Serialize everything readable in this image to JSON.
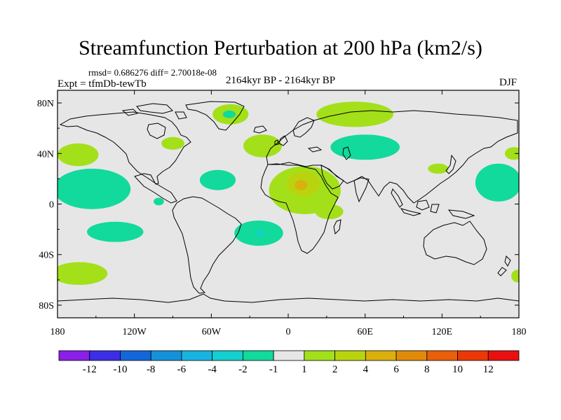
{
  "header": {
    "title": "Streamfunction Perturbation at 200 hPa (km2/s)",
    "stats": "rmsd= 0.686276 diff= 2.70018e-08",
    "period": "2164kyr BP - 2164kyr BP",
    "experiment": "Expt = tfmDb-tewTb",
    "season": "DJF"
  },
  "axes": {
    "lat_labels": [
      "80N",
      "40N",
      "0",
      "40S",
      "80S"
    ],
    "lat_values": [
      80,
      40,
      0,
      -40,
      -80
    ],
    "lon_labels": [
      "180",
      "120W",
      "60W",
      "0",
      "60E",
      "120E",
      "180"
    ],
    "lon_values": [
      -180,
      -120,
      -60,
      0,
      60,
      120,
      180
    ],
    "lat_range": [
      -90,
      90
    ],
    "lon_range": [
      -180,
      180
    ]
  },
  "colorbar": {
    "labels": [
      "-12",
      "-10",
      "-8",
      "-6",
      "-4",
      "-2",
      "-1",
      "1",
      "2",
      "4",
      "6",
      "8",
      "10",
      "12"
    ],
    "colors": [
      "#8a1fe6",
      "#3c2ee6",
      "#1467d9",
      "#1591d9",
      "#17b4e0",
      "#14cfcf",
      "#12d99c",
      "#e6e6e6",
      "#a3e01a",
      "#b9d40f",
      "#dab00c",
      "#e08a0a",
      "#e8600a",
      "#ea3808",
      "#e81010"
    ]
  },
  "map_background": "#e6e6e6",
  "anomalies": [
    {
      "name": "pacific-west-south-positive",
      "lon": -153,
      "lat": 12,
      "rlon": 30,
      "rlat": 16,
      "color": "#12d99c"
    },
    {
      "name": "north-pacific-east-positive",
      "lon": -164,
      "lat": 39,
      "rlon": 16,
      "rlat": 9,
      "color": "#a3e01a"
    },
    {
      "name": "greenland-positive",
      "lon": -45,
      "lat": 71,
      "rlon": 14,
      "rlat": 8,
      "color": "#a3e01a"
    },
    {
      "name": "greenland-negative",
      "lon": -46,
      "lat": 71,
      "rlon": 5,
      "rlat": 3,
      "color": "#12d99c"
    },
    {
      "name": "north-america-positive",
      "lon": -90,
      "lat": 48,
      "rlon": 9,
      "rlat": 5,
      "color": "#a3e01a"
    },
    {
      "name": "north-atlantic-positive",
      "lon": -20,
      "lat": 46,
      "rlon": 15,
      "rlat": 9,
      "color": "#a3e01a"
    },
    {
      "name": "caribbean-negative",
      "lon": -55,
      "lat": 19,
      "rlon": 14,
      "rlat": 8,
      "color": "#12d99c"
    },
    {
      "name": "east-pacific-small-negative",
      "lon": -101,
      "lat": 2,
      "rlon": 4,
      "rlat": 3,
      "color": "#12d99c"
    },
    {
      "name": "arctic-siberia-positive",
      "lon": 52,
      "lat": 71,
      "rlon": 30,
      "rlat": 10,
      "color": "#a3e01a"
    },
    {
      "name": "west-asia-negative",
      "lon": 60,
      "lat": 45,
      "rlon": 27,
      "rlat": 10,
      "color": "#12d99c"
    },
    {
      "name": "africa-positive",
      "lon": 13,
      "lat": 11,
      "rlon": 28,
      "rlat": 19,
      "color": "#a3e01a"
    },
    {
      "name": "africa-core-positive",
      "lon": 12,
      "lat": 16,
      "rlon": 13,
      "rlat": 10,
      "color": "#b9d40f"
    },
    {
      "name": "africa-core-center",
      "lon": 10,
      "lat": 15,
      "rlon": 5,
      "rlat": 4,
      "color": "#dab00c"
    },
    {
      "name": "south-atlantic-negative",
      "lon": -23,
      "lat": -23,
      "rlon": 19,
      "rlat": 10,
      "color": "#12d99c"
    },
    {
      "name": "south-atlantic-core",
      "lon": -22,
      "lat": -23,
      "rlon": 3,
      "rlat": 2,
      "color": "#14cfcf"
    },
    {
      "name": "south-pacific-negative",
      "lon": -135,
      "lat": -22,
      "rlon": 22,
      "rlat": 8,
      "color": "#12d99c"
    },
    {
      "name": "southern-pacific-positive",
      "lon": -163,
      "lat": -55,
      "rlon": 22,
      "rlat": 9,
      "color": "#a3e01a"
    },
    {
      "name": "east-asia-positive",
      "lon": 117,
      "lat": 28,
      "rlon": 8,
      "rlat": 4,
      "color": "#a3e01a"
    },
    {
      "name": "west-pacific-negative",
      "lon": 164,
      "lat": 17,
      "rlon": 18,
      "rlat": 15,
      "color": "#12d99c"
    },
    {
      "name": "indian-ocean-positive",
      "lon": 32,
      "lat": -6,
      "rlon": 11,
      "rlat": 6,
      "color": "#a3e01a"
    },
    {
      "name": "dateline-north-positive",
      "lon": 176,
      "lat": 40,
      "rlon": 7,
      "rlat": 5,
      "color": "#a3e01a"
    },
    {
      "name": "dateline-south-positive",
      "lon": 179,
      "lat": -57,
      "rlon": 5,
      "rlat": 5,
      "color": "#a3e01a"
    }
  ]
}
